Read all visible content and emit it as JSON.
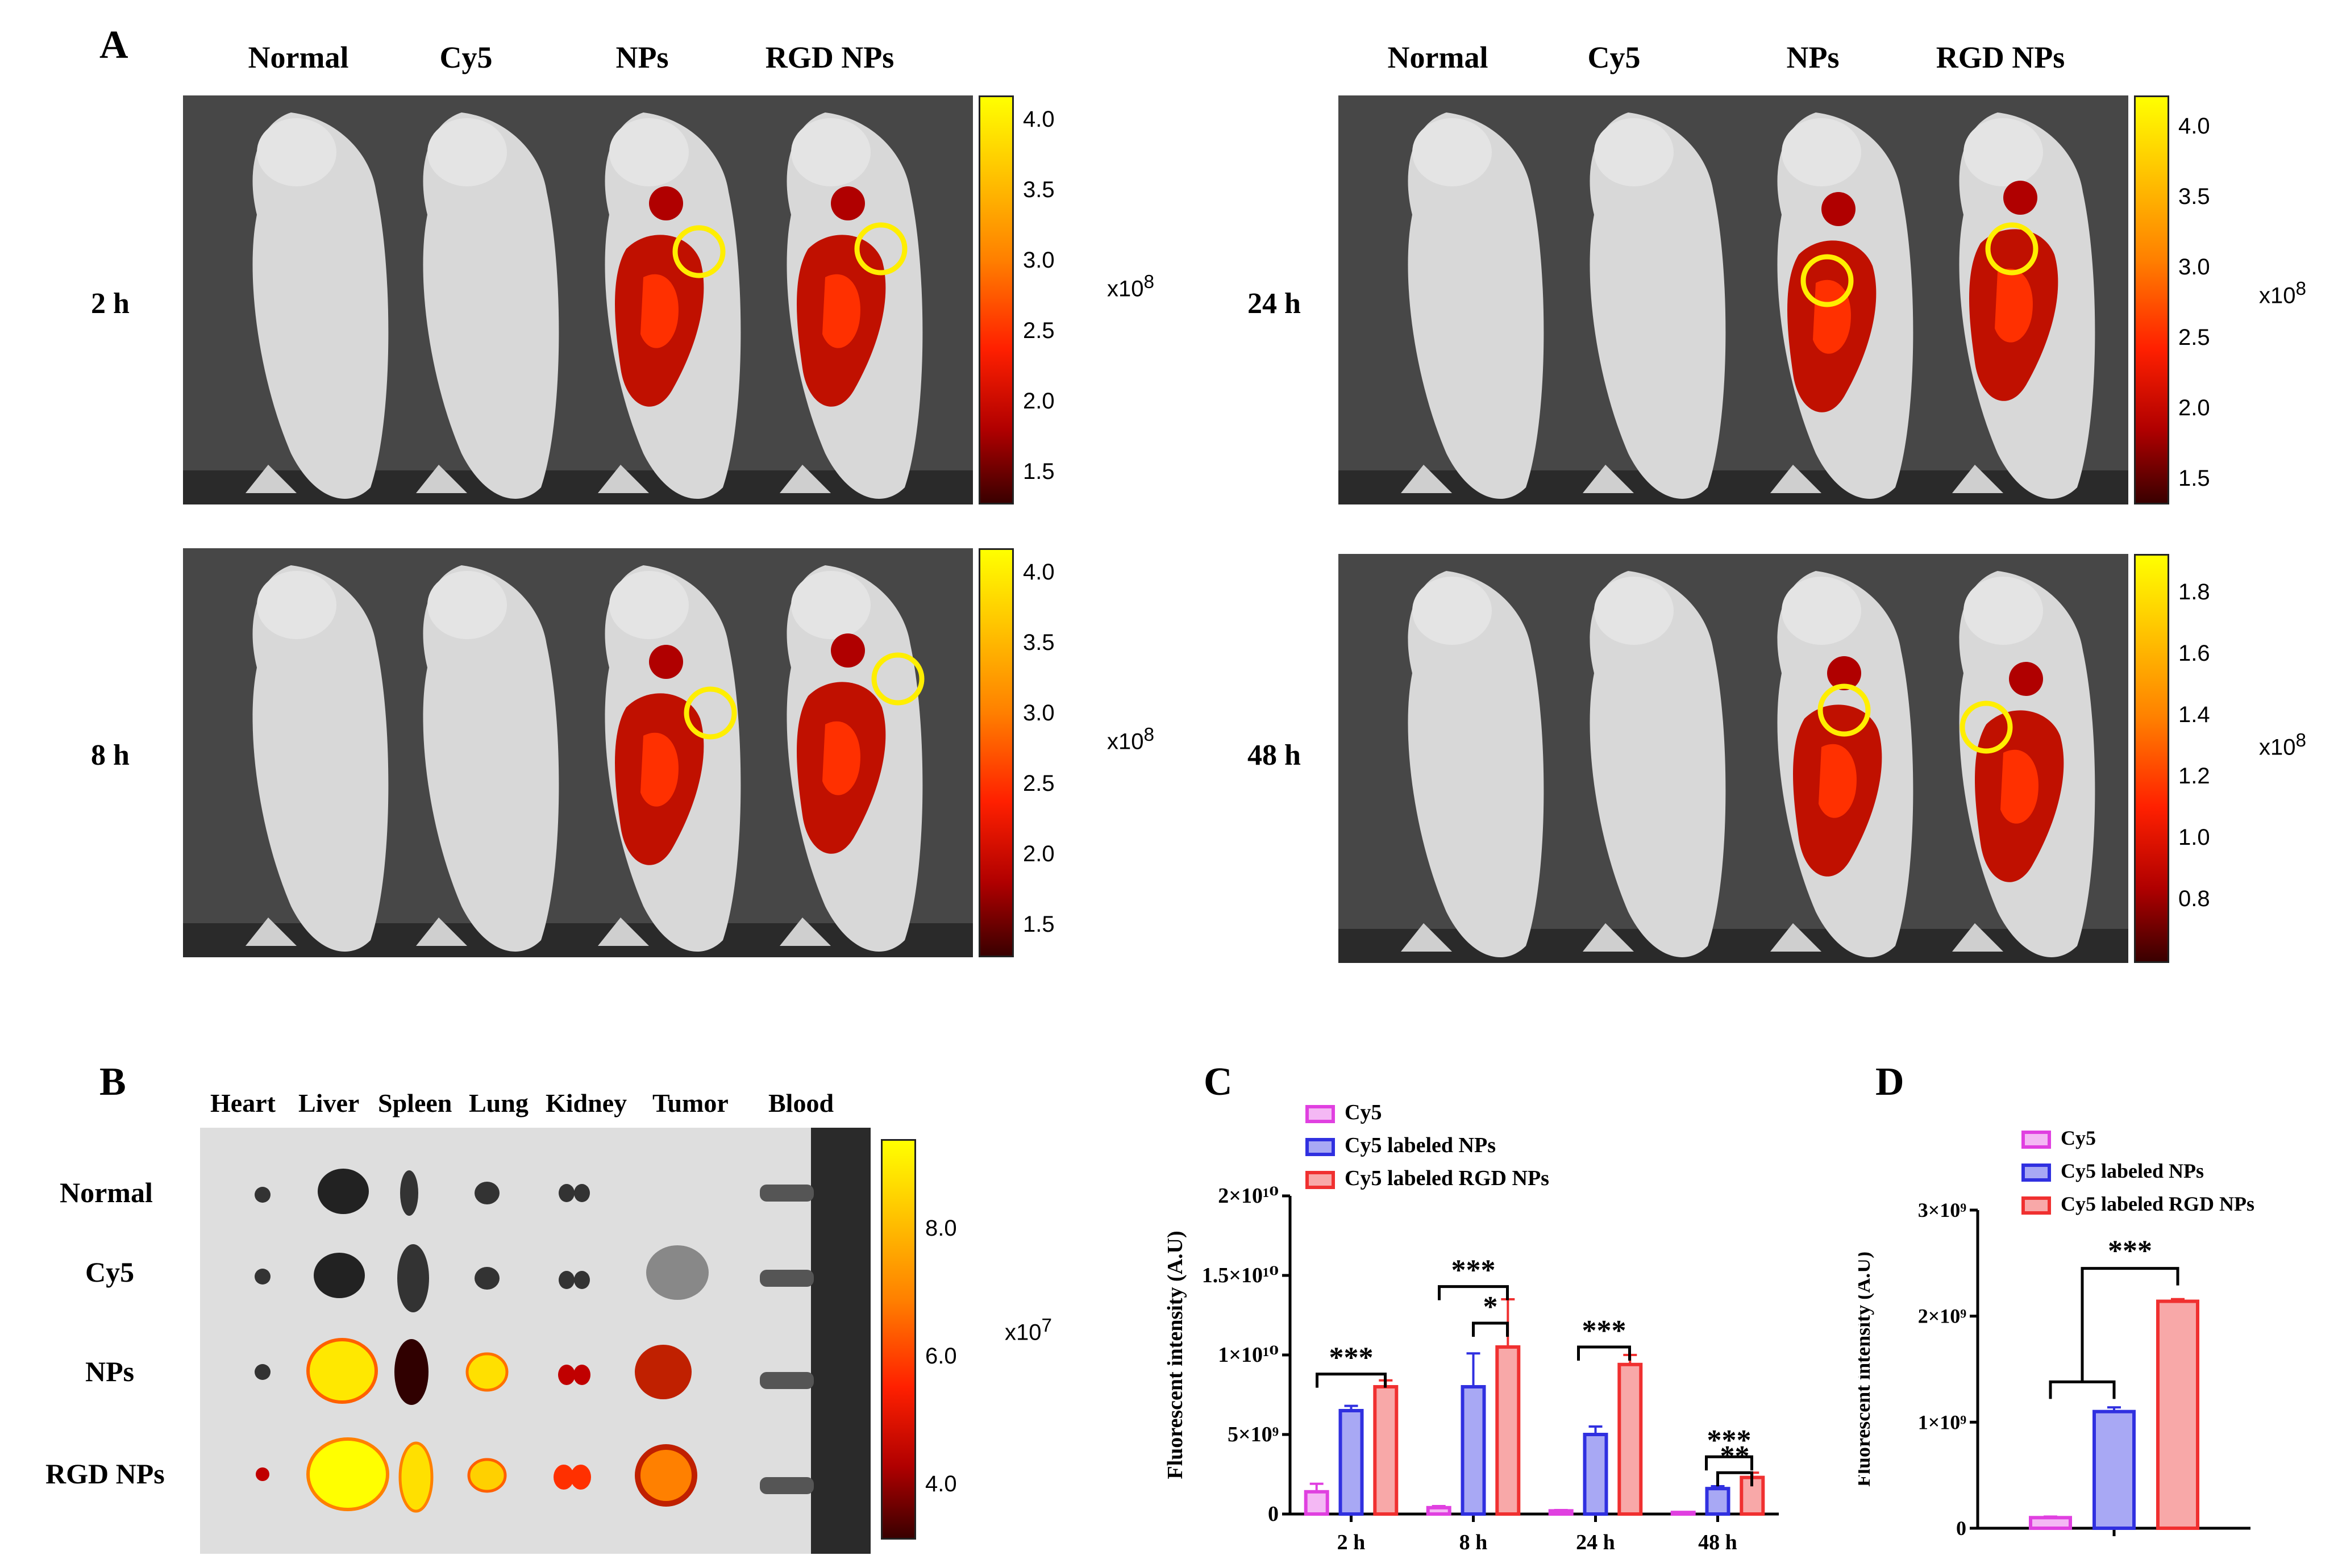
{
  "panel_labels": {
    "a": "A",
    "b": "B",
    "c": "C",
    "d": "D"
  },
  "panelA": {
    "column_headers": [
      "Normal",
      "Cy5",
      "NPs",
      "RGD NPs"
    ],
    "timepoints": [
      {
        "label": "2 h",
        "scale_ticks": [
          "4.0",
          "3.5",
          "3.0",
          "2.5",
          "2.0",
          "1.5"
        ],
        "exponent": "x10",
        "exp_power": "8"
      },
      {
        "label": "8 h",
        "scale_ticks": [
          "4.0",
          "3.5",
          "3.0",
          "2.5",
          "2.0",
          "1.5"
        ],
        "exponent": "x10",
        "exp_power": "8"
      },
      {
        "label": "24 h",
        "scale_ticks": [
          "4.0",
          "3.5",
          "3.0",
          "2.5",
          "2.0",
          "1.5"
        ],
        "exponent": "x10",
        "exp_power": "8"
      },
      {
        "label": "48 h",
        "scale_ticks": [
          "1.8",
          "1.6",
          "1.4",
          "1.2",
          "1.0",
          "0.8"
        ],
        "exponent": "x10",
        "exp_power": "8"
      }
    ]
  },
  "panelB": {
    "column_headers": [
      "Heart",
      "Liver",
      "Spleen",
      "Lung",
      "Kidney",
      "Tumor",
      "Blood"
    ],
    "row_labels": [
      "Normal",
      "Cy5",
      "NPs",
      "RGD NPs"
    ],
    "scale_ticks": [
      "8.0",
      "6.0",
      "4.0"
    ],
    "exponent": "x10",
    "exp_power": "7"
  },
  "chart_data": [
    {
      "type": "bar",
      "panel": "C",
      "ylabel": "Fluorescent intensity (A.U)",
      "xlabel": "",
      "categories": [
        "2 h",
        "8 h",
        "24 h",
        "48 h"
      ],
      "ylim": [
        0,
        20000000000.0
      ],
      "yticks": [
        {
          "value": 0,
          "label": "0"
        },
        {
          "value": 5000000000.0,
          "label": "5×10⁹"
        },
        {
          "value": 10000000000.0,
          "label": "1×10¹⁰"
        },
        {
          "value": 15000000000.0,
          "label": "1.5×10¹⁰"
        },
        {
          "value": 20000000000.0,
          "label": "2×10¹⁰"
        }
      ],
      "series": [
        {
          "name": "Cy5",
          "color": "#e040e0",
          "fill": "#f4b8f4",
          "values": [
            1400000000.0,
            400000000.0,
            200000000.0,
            100000000.0
          ],
          "errors": [
            500000000.0,
            100000000.0,
            50000000.0,
            20000000.0
          ]
        },
        {
          "name": "Cy5 labeled NPs",
          "color": "#3030e0",
          "fill": "#a8a8f4",
          "values": [
            6500000000.0,
            8000000000.0,
            5000000000.0,
            1600000000.0
          ],
          "errors": [
            300000000.0,
            2100000000.0,
            500000000.0,
            150000000.0
          ]
        },
        {
          "name": "Cy5 labeled RGD NPs",
          "color": "#f03030",
          "fill": "#f8a8a8",
          "values": [
            8000000000.0,
            10500000000.0,
            9400000000.0,
            2300000000.0
          ],
          "errors": [
            400000000.0,
            3000000000.0,
            600000000.0,
            300000000.0
          ]
        }
      ],
      "significance": [
        {
          "text": "***",
          "category": 0
        },
        {
          "text": "***",
          "category": 1
        },
        {
          "text": "*",
          "category": 1
        },
        {
          "text": "***",
          "category": 2
        },
        {
          "text": "***",
          "category": 3
        },
        {
          "text": "**",
          "category": 3
        }
      ]
    },
    {
      "type": "bar",
      "panel": "D",
      "ylabel": "Fluorescent intensity (A.U)",
      "xlabel": "",
      "categories": [
        ""
      ],
      "ylim": [
        0,
        3000000000.0
      ],
      "yticks": [
        {
          "value": 0,
          "label": "0"
        },
        {
          "value": 1000000000.0,
          "label": "1×10⁹"
        },
        {
          "value": 2000000000.0,
          "label": "2×10⁹"
        },
        {
          "value": 3000000000.0,
          "label": "3×10⁹"
        }
      ],
      "series": [
        {
          "name": "Cy5",
          "color": "#e040e0",
          "fill": "#f4b8f4",
          "values": [
            100000000.0
          ],
          "errors": [
            10000000.0
          ]
        },
        {
          "name": "Cy5 labeled  NPs",
          "color": "#3030e0",
          "fill": "#a8a8f4",
          "values": [
            1100000000.0
          ],
          "errors": [
            40000000.0
          ]
        },
        {
          "name": "Cy5 labeled RGD NPs",
          "color": "#f03030",
          "fill": "#f8a8a8",
          "values": [
            2140000000.0
          ],
          "errors": [
            20000000.0
          ]
        }
      ],
      "significance": [
        {
          "text": "***",
          "category": 0
        }
      ]
    }
  ]
}
